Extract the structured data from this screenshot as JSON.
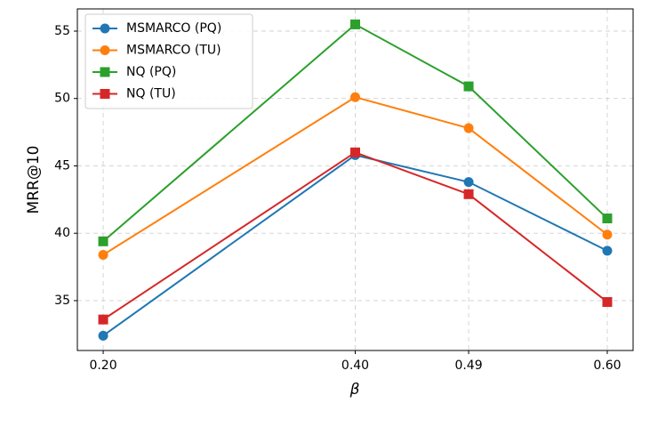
{
  "chart_data": {
    "type": "line",
    "x_label": "β",
    "y_label": "MRR@10",
    "x": [
      0.2,
      0.4,
      0.49,
      0.6
    ],
    "xlim": [
      0.1795,
      0.6205
    ],
    "xticks": [
      {
        "value": 0.2,
        "label": "0.20"
      },
      {
        "value": 0.4,
        "label": "0.40"
      },
      0.49,
      {
        "value": 0.6,
        "label": "0.60"
      }
    ],
    "ylim": [
      31.3,
      56.65
    ],
    "yticks": [
      35,
      40,
      45,
      50,
      55
    ],
    "grid": true,
    "legend": "upper-left",
    "series": [
      {
        "name": "MSMARCO (PQ)",
        "color": "#1f77b4",
        "marker": "circle",
        "values": [
          32.4,
          45.8,
          43.8,
          38.7
        ]
      },
      {
        "name": "MSMARCO (TU)",
        "color": "#ff7f0e",
        "marker": "circle",
        "values": [
          38.4,
          50.1,
          47.8,
          39.9
        ]
      },
      {
        "name": "NQ (PQ)",
        "color": "#2ca02c",
        "marker": "square",
        "values": [
          39.4,
          55.5,
          50.9,
          41.1
        ]
      },
      {
        "name": "NQ (TU)",
        "color": "#d62728",
        "marker": "square",
        "values": [
          33.6,
          46.0,
          42.9,
          34.9
        ]
      }
    ]
  }
}
